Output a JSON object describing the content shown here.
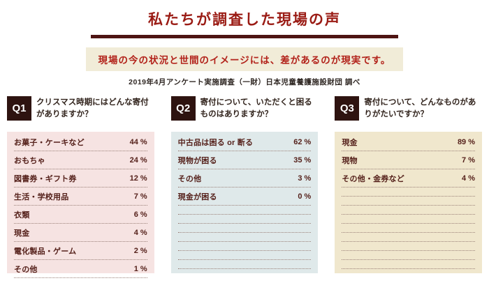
{
  "page": {
    "title": "私たちが調査した現場の声",
    "subtitle": "現場の今の状況と世間のイメージには、差があるのが現実です。",
    "source": "2019年4月アンケート実施調査（一財）日本児童養護施設財団 調べ"
  },
  "colors": {
    "title_red": "#9a1b14",
    "underline_maroon": "#4e1413",
    "subtitle_bg": "#f1ecd8",
    "subtitle_red": "#b2221a",
    "badge_bg": "#2e1310",
    "item_text": "#55211b",
    "panel_q1": "#f6e3e2",
    "panel_q2": "#dfe9ea",
    "panel_q3": "#f0e7cd"
  },
  "questions": [
    {
      "id": "Q1",
      "question": "クリスマス時期にはどんな寄付がありますか？",
      "panel_color": "#f6e3e2",
      "items": [
        {
          "label": "お菓子・ケーキなど",
          "value": "44 %"
        },
        {
          "label": "おもちゃ",
          "value": "24 %"
        },
        {
          "label": "図書券・ギフト券",
          "value": "12 %"
        },
        {
          "label": "生活・学校用品",
          "value": "7 %"
        },
        {
          "label": "衣類",
          "value": "6 %"
        },
        {
          "label": "現金",
          "value": "4 %"
        },
        {
          "label": "電化製品・ゲーム",
          "value": "2 %"
        },
        {
          "label": "その他",
          "value": "1 %"
        }
      ],
      "filler_lines": 0
    },
    {
      "id": "Q2",
      "question": "寄付について、いただくと困るものはありますか？",
      "panel_color": "#dfe9ea",
      "items": [
        {
          "label": "中古品は困る or 断る",
          "value": "62 %"
        },
        {
          "label": "現物が困る",
          "value": "35 %"
        },
        {
          "label": "その他",
          "value": "3 %"
        },
        {
          "label": "現金が困る",
          "value": "0 %"
        }
      ],
      "filler_lines": 7
    },
    {
      "id": "Q3",
      "question": "寄付について、どんなものがありがたいですか？",
      "panel_color": "#f0e7cd",
      "items": [
        {
          "label": "現金",
          "value": "89 %"
        },
        {
          "label": "現物",
          "value": "7 %"
        },
        {
          "label": "その他・金券など",
          "value": "4 %"
        }
      ],
      "filler_lines": 9
    }
  ],
  "chart_data": [
    {
      "type": "table",
      "title": "Q1 クリスマス時期にはどんな寄付がありますか？",
      "categories": [
        "お菓子・ケーキなど",
        "おもちゃ",
        "図書券・ギフト券",
        "生活・学校用品",
        "衣類",
        "現金",
        "電化製品・ゲーム",
        "その他"
      ],
      "values": [
        44,
        24,
        12,
        7,
        6,
        4,
        2,
        1
      ],
      "unit": "%"
    },
    {
      "type": "table",
      "title": "Q2 寄付について、いただくと困るものはありますか？",
      "categories": [
        "中古品は困る or 断る",
        "現物が困る",
        "その他",
        "現金が困る"
      ],
      "values": [
        62,
        35,
        3,
        0
      ],
      "unit": "%"
    },
    {
      "type": "table",
      "title": "Q3 寄付について、どんなものがありがたいですか？",
      "categories": [
        "現金",
        "現物",
        "その他・金券など"
      ],
      "values": [
        89,
        7,
        4
      ],
      "unit": "%"
    }
  ]
}
